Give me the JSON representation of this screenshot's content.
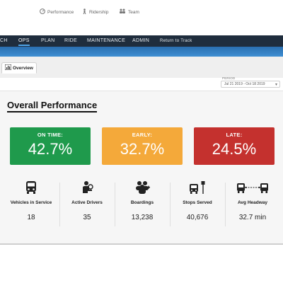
{
  "topnav": {
    "items": [
      "CH",
      "OPS",
      "PLAN",
      "RIDE",
      "MAINTENANCE",
      "ADMIN"
    ],
    "active": "OPS",
    "return_link": "Return to Track"
  },
  "subnav": {
    "tabs": [
      {
        "label": "Overview",
        "icon": "chart-icon",
        "active": true
      },
      {
        "label": "Performance",
        "icon": "gauge-icon",
        "active": false
      },
      {
        "label": "Ridership",
        "icon": "rider-icon",
        "active": false
      },
      {
        "label": "Team",
        "icon": "team-icon",
        "active": false
      }
    ]
  },
  "period": {
    "label": "PERIOD",
    "value": "Jul 21 2019 - Oct 18 2019"
  },
  "main": {
    "title": "Overall Performance",
    "cards": [
      {
        "label": "ON TIME:",
        "value": "42.7%",
        "color": "#1f9a4c"
      },
      {
        "label": "EARLY:",
        "value": "32.7%",
        "color": "#f4a93a"
      },
      {
        "label": "LATE:",
        "value": "24.5%",
        "color": "#c4312e"
      }
    ],
    "metrics": [
      {
        "label": "Vehicles in Service",
        "value": "18",
        "icon": "bus-icon"
      },
      {
        "label": "Active Drivers",
        "value": "35",
        "icon": "driver-icon"
      },
      {
        "label": "Boardings",
        "value": "13,238",
        "icon": "people-icon"
      },
      {
        "label": "Stops Served",
        "value": "40,676",
        "icon": "bus-stop-icon"
      },
      {
        "label": "Avg Headway",
        "value": "32.7 min",
        "icon": "headway-icon"
      }
    ]
  }
}
